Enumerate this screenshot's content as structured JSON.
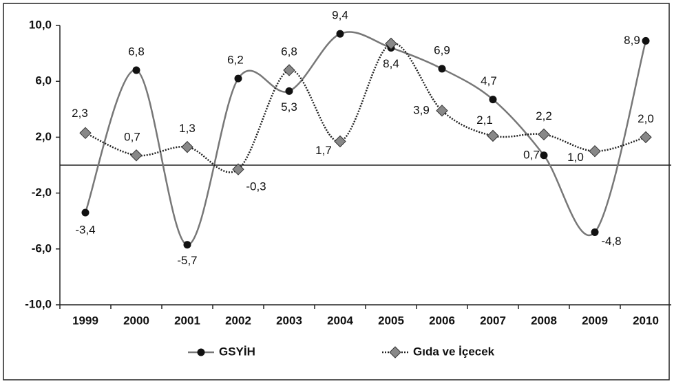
{
  "chart_data": {
    "type": "line",
    "categories": [
      "1999",
      "2000",
      "2001",
      "2002",
      "2003",
      "2004",
      "2005",
      "2006",
      "2007",
      "2008",
      "2009",
      "2010"
    ],
    "series": [
      {
        "name": "GSYİH",
        "color": "#777777",
        "marker": "circle",
        "values": [
          -3.4,
          6.8,
          -5.7,
          6.2,
          5.3,
          9.4,
          8.4,
          6.9,
          4.7,
          0.7,
          -4.8,
          8.9
        ],
        "value_labels": [
          "-3,4",
          "6,8",
          "-5,7",
          "6,2",
          "5,3",
          "9,4",
          "8,4",
          "6,9",
          "4,7",
          "0,7",
          "-4,8",
          "8,9"
        ]
      },
      {
        "name": "Gıda ve İçecek",
        "color": "#222222",
        "marker": "diamond",
        "values": [
          2.3,
          0.7,
          1.3,
          -0.3,
          6.8,
          1.7,
          8.7,
          3.9,
          2.1,
          2.2,
          1.0,
          2.0
        ],
        "value_labels": [
          "2,3",
          "0,7",
          "1,3",
          "-0,3",
          "6,8",
          "1,7",
          null,
          "3,9",
          "2,1",
          "2,2",
          "1,0",
          "2,0"
        ]
      }
    ],
    "ylim": [
      -10,
      10
    ],
    "yticks": [
      {
        "value": -10,
        "label": "-10,0"
      },
      {
        "value": -6,
        "label": "-6,0"
      },
      {
        "value": -2,
        "label": "-2,0"
      },
      {
        "value": 2,
        "label": "2,0"
      },
      {
        "value": 6,
        "label": "6,0"
      },
      {
        "value": 10,
        "label": "10,0"
      }
    ],
    "grid": false,
    "legend": "bottom"
  }
}
